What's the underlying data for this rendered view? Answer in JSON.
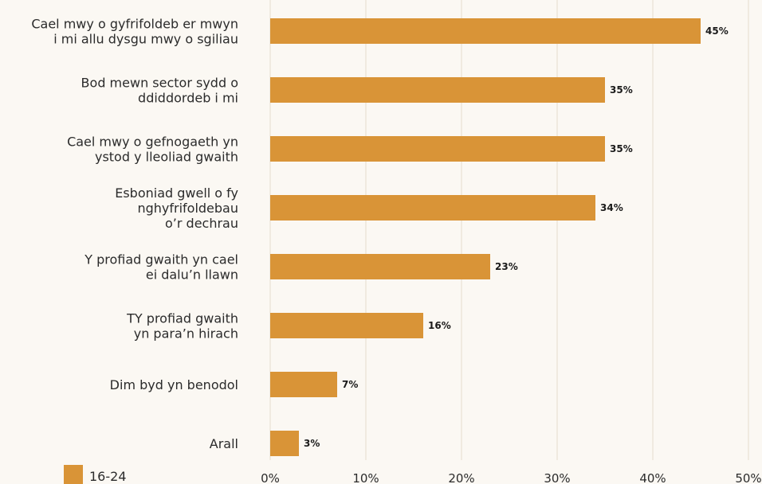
{
  "chart_data": {
    "type": "bar",
    "orientation": "horizontal",
    "categories": [
      [
        "Cael mwy o gyfrifoldeb er mwyn",
        "i mi allu dysgu mwy o sgiliau"
      ],
      [
        "Bod mewn sector sydd o",
        "ddiddordeb i mi"
      ],
      [
        "Cael mwy o gefnogaeth yn",
        "ystod y lleoliad gwaith"
      ],
      [
        "Esboniad gwell o fy",
        "nghyfrifoldebau",
        "o’r dechrau"
      ],
      [
        "Y profiad gwaith yn cael",
        "ei dalu’n llawn"
      ],
      [
        "TY profiad gwaith",
        "yn para’n hirach"
      ],
      [
        "Dim byd yn benodol"
      ],
      [
        "Arall"
      ]
    ],
    "series": [
      {
        "name": "16-24",
        "values": [
          45,
          35,
          35,
          34,
          23,
          16,
          7,
          3
        ],
        "value_labels": [
          "45%",
          "35%",
          "35%",
          "34%",
          "23%",
          "16%",
          "7%",
          "3%"
        ],
        "color": "#d99437"
      }
    ],
    "x_ticks": [
      "0%",
      "10%",
      "20%",
      "30%",
      "40%",
      "50%"
    ],
    "xlim": [
      0,
      50
    ],
    "grid": true,
    "legend_position": "bottom-left"
  }
}
